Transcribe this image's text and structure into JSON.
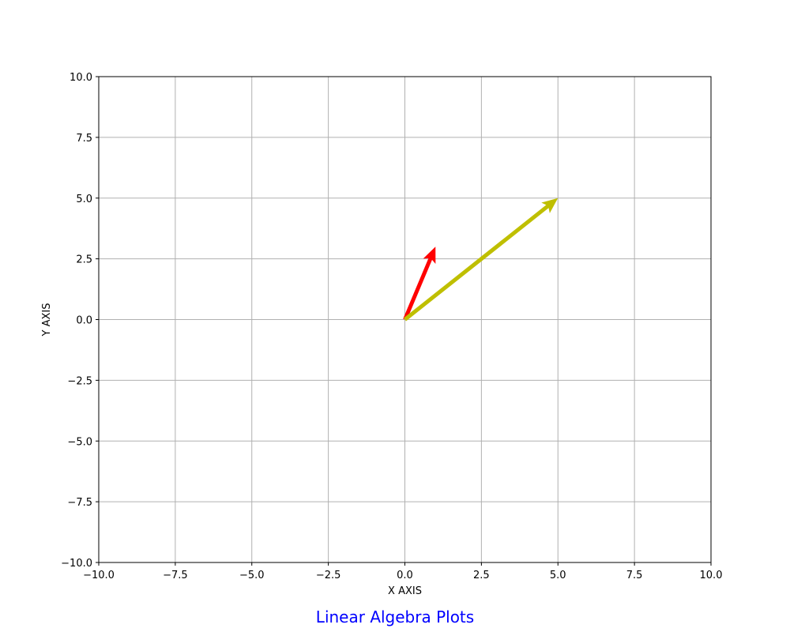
{
  "chart_data": {
    "type": "vector",
    "title": "Linear Algebra Plots",
    "title_color": "#0000ff",
    "xlabel": "X AXIS",
    "ylabel": "Y AXIS",
    "xlim": [
      -10,
      10
    ],
    "ylim": [
      -10,
      10
    ],
    "x_ticks": [
      -10,
      -7.5,
      -5,
      -2.5,
      0,
      2.5,
      5,
      7.5,
      10
    ],
    "y_ticks": [
      -10,
      -7.5,
      -5,
      -2.5,
      0,
      2.5,
      5,
      7.5,
      10
    ],
    "x_tick_labels": [
      "−10.0",
      "−7.5",
      "−5.0",
      "−2.5",
      "0.0",
      "2.5",
      "5.0",
      "7.5",
      "10.0"
    ],
    "y_tick_labels": [
      "−10.0",
      "−7.5",
      "−5.0",
      "−2.5",
      "0.0",
      "2.5",
      "5.0",
      "7.5",
      "10.0"
    ],
    "grid": true,
    "grid_color": "#b0b0b0",
    "vectors": [
      {
        "origin": [
          0,
          0
        ],
        "components": [
          1,
          3
        ],
        "color": "#ff0000"
      },
      {
        "origin": [
          0,
          0
        ],
        "components": [
          5,
          5
        ],
        "color": "#bfbf00"
      }
    ]
  }
}
